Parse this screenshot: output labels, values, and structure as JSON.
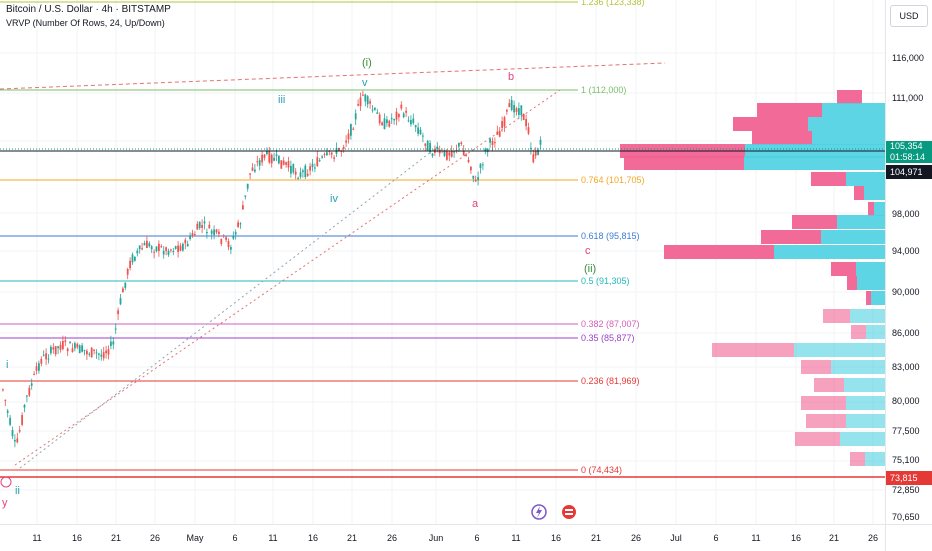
{
  "header": {
    "title": "Bitcoin / U.S. Dollar · 4h · BITSTAMP",
    "indicator": "VRVP (Number Of Rows, 24, Up/Down)"
  },
  "currency_button": "USD",
  "price_axis": {
    "labels": [
      "116,000",
      "111,000",
      "98,000",
      "94,000",
      "90,000",
      "86,000",
      "83,000",
      "80,000",
      "77,500",
      "75,100",
      "72,850",
      "70,650"
    ],
    "current_price": "105,354",
    "countdown": "01:58:14",
    "cursor_price": "104,971",
    "bottom_tag": "73,815"
  },
  "time_axis": {
    "labels": [
      "11",
      "16",
      "21",
      "26",
      "May",
      "6",
      "11",
      "16",
      "21",
      "26",
      "Jun",
      "6",
      "11",
      "16",
      "21",
      "26",
      "Jul",
      "6",
      "11",
      "16",
      "21",
      "26"
    ]
  },
  "fib_levels": [
    {
      "label": "1.236 (123,338)",
      "color": "#b5c43a"
    },
    {
      "label": "1 (112,000)",
      "color": "#7cbf6a"
    },
    {
      "label": "0.764 (101,705)",
      "color": "#f5a623"
    },
    {
      "label": "0.618 (95,815)",
      "color": "#3a7bd5"
    },
    {
      "label": "0.5 (91,305)",
      "color": "#26b8b8"
    },
    {
      "label": "0.382 (87,007)",
      "color": "#d35fb7"
    },
    {
      "label": "0.35 (85,877)",
      "color": "#9b3fc9"
    },
    {
      "label": "0.236 (81,969)",
      "color": "#e53935"
    },
    {
      "label": "0 (74,434)",
      "color": "#e53935"
    }
  ],
  "wave_labels": [
    {
      "text": "(i)",
      "color": "#388e3c"
    },
    {
      "text": "v",
      "color": "#26a0b3"
    },
    {
      "text": "iii",
      "color": "#26a0b3"
    },
    {
      "text": "iv",
      "color": "#26a0b3"
    },
    {
      "text": "i",
      "color": "#26a0b3"
    },
    {
      "text": "ii",
      "color": "#26a0b3"
    },
    {
      "text": "y",
      "color": "#e0457b"
    },
    {
      "text": "b",
      "color": "#e0457b"
    },
    {
      "text": "a",
      "color": "#e0457b"
    },
    {
      "text": "c",
      "color": "#e0457b"
    },
    {
      "text": "(ii)",
      "color": "#388e3c"
    }
  ],
  "colors": {
    "up": "#26a69a",
    "down": "#ef5350",
    "vp_up": "#4dd0e1",
    "vp_down": "#f06292",
    "accent": "#089981"
  }
}
